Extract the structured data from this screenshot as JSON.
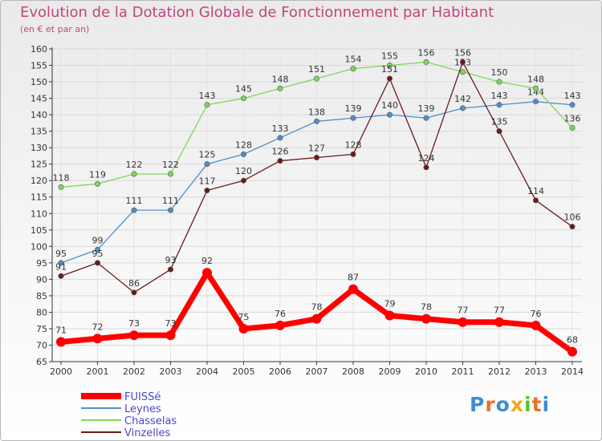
{
  "chart_data": {
    "type": "line",
    "title": "Evolution de la Dotation Globale de Fonctionnement par Habitant",
    "subtitle": "(en € et par an)",
    "xlabel": "",
    "ylabel": "",
    "categories": [
      "2000",
      "2001",
      "2002",
      "2003",
      "2004",
      "2005",
      "2006",
      "2007",
      "2008",
      "2009",
      "2010",
      "2011",
      "2012",
      "2013",
      "2014"
    ],
    "ylim": [
      65,
      160
    ],
    "yticks": [
      65,
      70,
      75,
      80,
      85,
      90,
      95,
      100,
      105,
      110,
      115,
      120,
      125,
      130,
      135,
      140,
      145,
      150,
      155,
      160
    ],
    "series": [
      {
        "name": "FUISSé",
        "color": "#ff0000",
        "values": [
          71,
          72,
          73,
          73,
          92,
          75,
          76,
          78,
          87,
          79,
          78,
          77,
          77,
          76,
          68
        ]
      },
      {
        "name": "Leynes",
        "color": "#4f8ec9",
        "values": [
          95,
          99,
          111,
          111,
          125,
          128,
          133,
          138,
          139,
          140,
          139,
          142,
          143,
          144,
          143
        ]
      },
      {
        "name": "Chasselas",
        "color": "#7fd65a",
        "values": [
          118,
          119,
          122,
          122,
          143,
          145,
          148,
          151,
          154,
          155,
          156,
          153,
          150,
          148,
          136
        ]
      },
      {
        "name": "Vinzelles",
        "color": "#6b1a1a",
        "values": [
          91,
          95,
          86,
          93,
          117,
          120,
          126,
          127,
          128,
          151,
          124,
          156,
          135,
          114,
          106
        ]
      }
    ]
  },
  "brand": {
    "text": "Proxiti",
    "letters": [
      "P",
      "r",
      "o",
      "x",
      "i",
      "t",
      "i"
    ],
    "colors": [
      "#3a8fd6",
      "#e8712a",
      "#3a8fd6",
      "#f0a818",
      "#5bbf3a",
      "#e8712a",
      "#3a8fd6"
    ]
  }
}
